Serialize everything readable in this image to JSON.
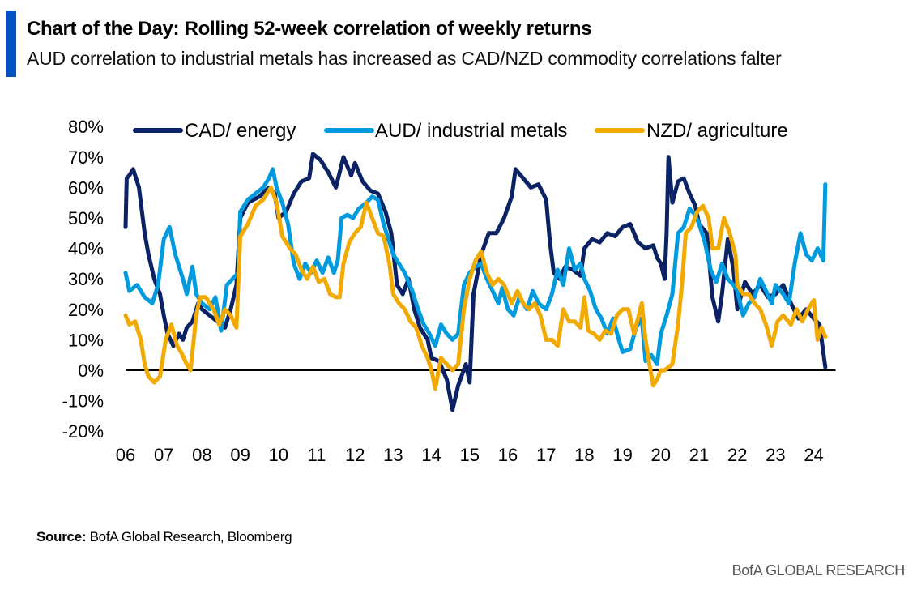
{
  "header": {
    "title": "Chart of the Day: Rolling 52-week correlation of weekly returns",
    "subtitle": "AUD correlation to industrial metals has increased as CAD/NZD commodity correlations falter",
    "accent_color": "#0052C2"
  },
  "footer": {
    "source_label": "Source:",
    "source_text": " BofA Global Research, Bloomberg",
    "brand": "BofA GLOBAL RESEARCH"
  },
  "chart_data": {
    "type": "line",
    "title": "Rolling 52-week correlation of weekly returns",
    "xlabel": "",
    "ylabel": "",
    "x_ticks": [
      "06",
      "07",
      "08",
      "09",
      "10",
      "11",
      "12",
      "13",
      "14",
      "15",
      "16",
      "17",
      "18",
      "19",
      "20",
      "21",
      "22",
      "23",
      "24"
    ],
    "x_tick_values": [
      2006,
      2007,
      2008,
      2009,
      2010,
      2011,
      2012,
      2013,
      2014,
      2015,
      2016,
      2017,
      2018,
      2019,
      2020,
      2021,
      2022,
      2023,
      2024
    ],
    "xlim": [
      2006,
      2024.4
    ],
    "y_ticks": [
      "80%",
      "70%",
      "60%",
      "50%",
      "40%",
      "30%",
      "20%",
      "10%",
      "0%",
      "-10%",
      "-20%"
    ],
    "y_tick_values": [
      80,
      70,
      60,
      50,
      40,
      30,
      20,
      10,
      0,
      -10,
      -20
    ],
    "ylim": [
      -20,
      80
    ],
    "grid": false,
    "zero_line": true,
    "legend_position": "top",
    "series": [
      {
        "name": "CAD/ energy",
        "color": "#0B2265",
        "x": [
          2006.0,
          2006.03,
          2006.1,
          2006.2,
          2006.35,
          2006.5,
          2006.6,
          2006.75,
          2006.9,
          2007.0,
          2007.1,
          2007.25,
          2007.4,
          2007.5,
          2007.6,
          2007.75,
          2007.9,
          2008.0,
          2008.2,
          2008.4,
          2008.6,
          2008.75,
          2008.9,
          2009.0,
          2009.2,
          2009.5,
          2009.75,
          2009.9,
          2010.0,
          2010.2,
          2010.4,
          2010.6,
          2010.8,
          2010.9,
          2011.1,
          2011.3,
          2011.5,
          2011.7,
          2011.9,
          2012.0,
          2012.2,
          2012.4,
          2012.6,
          2012.8,
          2012.95,
          2013.1,
          2013.25,
          2013.4,
          2013.55,
          2013.7,
          2013.9,
          2014.0,
          2014.2,
          2014.4,
          2014.55,
          2014.7,
          2014.9,
          2015.0,
          2015.1,
          2015.3,
          2015.5,
          2015.7,
          2015.9,
          2016.1,
          2016.2,
          2016.4,
          2016.6,
          2016.8,
          2017.0,
          2017.1,
          2017.2,
          2017.35,
          2017.5,
          2017.7,
          2017.9,
          2018.0,
          2018.2,
          2018.4,
          2018.6,
          2018.8,
          2019.0,
          2019.2,
          2019.4,
          2019.6,
          2019.8,
          2019.9,
          2020.0,
          2020.1,
          2020.15,
          2020.2,
          2020.3,
          2020.45,
          2020.6,
          2020.75,
          2020.9,
          2021.0,
          2021.2,
          2021.35,
          2021.5,
          2021.6,
          2021.75,
          2021.9,
          2022.0,
          2022.2,
          2022.4,
          2022.6,
          2022.8,
          2023.0,
          2023.2,
          2023.4,
          2023.6,
          2023.8,
          2024.0,
          2024.15,
          2024.3
        ],
        "values": [
          47,
          63,
          64,
          66,
          60,
          45,
          38,
          30,
          25,
          18,
          12,
          8,
          12,
          10,
          14,
          16,
          22,
          20,
          18,
          16,
          14,
          20,
          28,
          50,
          55,
          57,
          60,
          58,
          50,
          52,
          58,
          62,
          63,
          71,
          69,
          65,
          60,
          70,
          64,
          68,
          62,
          59,
          58,
          52,
          45,
          28,
          25,
          30,
          20,
          14,
          10,
          4,
          3,
          -3,
          -13,
          -5,
          2,
          -4,
          25,
          38,
          45,
          45,
          50,
          57,
          66,
          63,
          60,
          61,
          56,
          42,
          32,
          30,
          34,
          33,
          31,
          40,
          43,
          42,
          45,
          44,
          47,
          48,
          42,
          40,
          41,
          37,
          35,
          30,
          45,
          70,
          55,
          62,
          63,
          58,
          54,
          48,
          45,
          24,
          16,
          25,
          43,
          33,
          20,
          29,
          25,
          28,
          24,
          25,
          28,
          22,
          17,
          20,
          17,
          15,
          1
        ]
      },
      {
        "name": "AUD/ industrial metals",
        "color": "#009ADE",
        "x": [
          2006.0,
          2006.1,
          2006.3,
          2006.5,
          2006.7,
          2006.85,
          2007.0,
          2007.15,
          2007.3,
          2007.5,
          2007.6,
          2007.75,
          2007.85,
          2008.0,
          2008.2,
          2008.35,
          2008.5,
          2008.65,
          2008.8,
          2008.95,
          2009.0,
          2009.2,
          2009.4,
          2009.6,
          2009.75,
          2009.85,
          2009.95,
          2010.1,
          2010.25,
          2010.4,
          2010.55,
          2010.7,
          2010.85,
          2011.0,
          2011.15,
          2011.3,
          2011.45,
          2011.55,
          2011.65,
          2011.8,
          2011.95,
          2012.1,
          2012.3,
          2012.45,
          2012.6,
          2012.75,
          2012.9,
          2013.0,
          2013.15,
          2013.3,
          2013.5,
          2013.65,
          2013.8,
          2013.95,
          2014.1,
          2014.25,
          2014.4,
          2014.55,
          2014.7,
          2014.85,
          2015.0,
          2015.15,
          2015.3,
          2015.45,
          2015.6,
          2015.75,
          2015.85,
          2016.0,
          2016.15,
          2016.3,
          2016.5,
          2016.65,
          2016.8,
          2017.0,
          2017.15,
          2017.3,
          2017.45,
          2017.6,
          2017.75,
          2017.9,
          2018.0,
          2018.15,
          2018.3,
          2018.45,
          2018.6,
          2018.75,
          2018.9,
          2019.0,
          2019.2,
          2019.35,
          2019.5,
          2019.6,
          2019.75,
          2019.9,
          2020.0,
          2020.15,
          2020.3,
          2020.45,
          2020.6,
          2020.75,
          2020.9,
          2021.0,
          2021.15,
          2021.3,
          2021.45,
          2021.6,
          2021.75,
          2021.9,
          2022.0,
          2022.15,
          2022.3,
          2022.45,
          2022.6,
          2022.75,
          2022.9,
          2023.0,
          2023.2,
          2023.35,
          2023.5,
          2023.65,
          2023.8,
          2023.95,
          2024.1,
          2024.25,
          2024.3
        ],
        "values": [
          32,
          26,
          28,
          24,
          22,
          28,
          43,
          47,
          38,
          30,
          25,
          34,
          25,
          22,
          20,
          24,
          13,
          28,
          30,
          32,
          52,
          56,
          58,
          60,
          63,
          66,
          60,
          55,
          48,
          35,
          30,
          35,
          32,
          36,
          32,
          37,
          32,
          36,
          50,
          51,
          50,
          53,
          55,
          57,
          56,
          48,
          42,
          38,
          35,
          32,
          26,
          20,
          15,
          12,
          8,
          15,
          12,
          10,
          12,
          28,
          32,
          34,
          35,
          30,
          26,
          22,
          27,
          20,
          18,
          24,
          20,
          26,
          22,
          20,
          25,
          33,
          28,
          40,
          33,
          35,
          30,
          26,
          20,
          17,
          12,
          17,
          10,
          6,
          7,
          14,
          17,
          3,
          5,
          2,
          12,
          18,
          25,
          45,
          47,
          53,
          51,
          48,
          42,
          33,
          29,
          35,
          30,
          28,
          26,
          18,
          22,
          24,
          30,
          26,
          22,
          28,
          25,
          22,
          35,
          45,
          38,
          36,
          40,
          36,
          61
        ]
      },
      {
        "name": "NZD/ agriculture",
        "color": "#F2A900",
        "x": [
          2006.0,
          2006.1,
          2006.25,
          2006.4,
          2006.5,
          2006.6,
          2006.75,
          2006.9,
          2007.05,
          2007.2,
          2007.35,
          2007.45,
          2007.6,
          2007.7,
          2007.85,
          2007.95,
          2008.1,
          2008.3,
          2008.45,
          2008.6,
          2008.75,
          2008.9,
          2009.0,
          2009.2,
          2009.4,
          2009.6,
          2009.8,
          2009.95,
          2010.1,
          2010.3,
          2010.45,
          2010.6,
          2010.75,
          2010.9,
          2011.05,
          2011.2,
          2011.35,
          2011.5,
          2011.6,
          2011.7,
          2011.85,
          2012.0,
          2012.15,
          2012.3,
          2012.45,
          2012.6,
          2012.75,
          2012.9,
          2013.0,
          2013.15,
          2013.3,
          2013.45,
          2013.6,
          2013.75,
          2013.9,
          2014.0,
          2014.1,
          2014.25,
          2014.4,
          2014.55,
          2014.7,
          2014.85,
          2015.0,
          2015.15,
          2015.3,
          2015.45,
          2015.6,
          2015.75,
          2015.9,
          2016.1,
          2016.25,
          2016.4,
          2016.55,
          2016.7,
          2016.85,
          2017.0,
          2017.15,
          2017.3,
          2017.45,
          2017.6,
          2017.75,
          2017.9,
          2018.0,
          2018.1,
          2018.25,
          2018.4,
          2018.55,
          2018.7,
          2018.85,
          2019.0,
          2019.15,
          2019.3,
          2019.5,
          2019.6,
          2019.7,
          2019.8,
          2019.9,
          2020.0,
          2020.1,
          2020.3,
          2020.45,
          2020.55,
          2020.65,
          2020.8,
          2020.95,
          2021.1,
          2021.25,
          2021.35,
          2021.5,
          2021.65,
          2021.8,
          2021.95,
          2022.0,
          2022.15,
          2022.3,
          2022.45,
          2022.6,
          2022.75,
          2022.9,
          2023.05,
          2023.2,
          2023.4,
          2023.55,
          2023.7,
          2023.85,
          2024.0,
          2024.1,
          2024.2,
          2024.3
        ],
        "values": [
          18,
          15,
          16,
          10,
          2,
          -2,
          -4,
          -2,
          10,
          15,
          8,
          6,
          2,
          0,
          18,
          24,
          24,
          20,
          15,
          20,
          18,
          14,
          44,
          48,
          54,
          56,
          60,
          55,
          44,
          40,
          38,
          33,
          30,
          34,
          29,
          30,
          25,
          24,
          24,
          35,
          42,
          45,
          47,
          55,
          50,
          45,
          44,
          35,
          25,
          22,
          20,
          16,
          14,
          8,
          4,
          0,
          -6,
          4,
          2,
          0,
          2,
          20,
          30,
          36,
          39,
          32,
          28,
          30,
          28,
          22,
          26,
          22,
          20,
          22,
          18,
          10,
          10,
          8,
          20,
          16,
          16,
          14,
          24,
          13,
          12,
          10,
          13,
          12,
          18,
          20,
          20,
          12,
          22,
          10,
          2,
          -5,
          -3,
          0,
          0,
          2,
          15,
          28,
          45,
          47,
          52,
          54,
          50,
          40,
          40,
          50,
          45,
          38,
          28,
          25,
          25,
          22,
          20,
          15,
          8,
          16,
          18,
          15,
          20,
          16,
          20,
          23,
          10,
          14,
          11
        ]
      }
    ]
  }
}
